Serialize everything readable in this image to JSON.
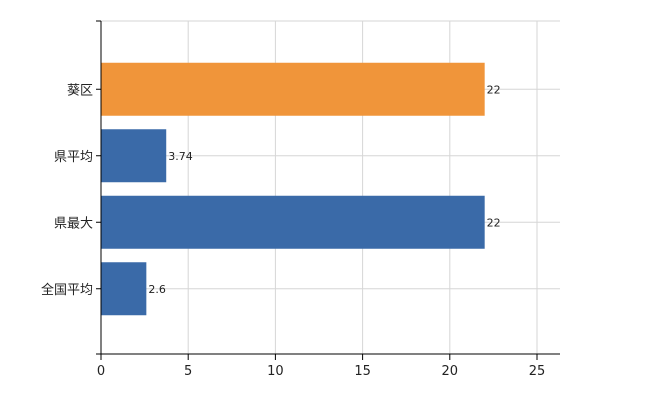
{
  "chart_data": {
    "type": "bar",
    "orientation": "horizontal",
    "categories": [
      "葵区",
      "県平均",
      "県最大",
      "全国平均"
    ],
    "values": [
      22,
      3.74,
      22,
      2.6
    ],
    "value_labels": [
      "22",
      "3.74",
      "22",
      "2.6"
    ],
    "bar_colors": [
      "#f0953a",
      "#3a6aa8",
      "#3a6aa8",
      "#3a6aa8"
    ],
    "xlim": [
      0,
      25
    ],
    "x_ticks": [
      0,
      5,
      10,
      15,
      20,
      25
    ],
    "x_tick_labels": [
      "0",
      "5",
      "10",
      "15",
      "20",
      "25"
    ],
    "grid": true,
    "title": "",
    "xlabel": "",
    "ylabel": ""
  },
  "colors": {
    "grid": "#d6d6d6",
    "axis": "#000000"
  }
}
